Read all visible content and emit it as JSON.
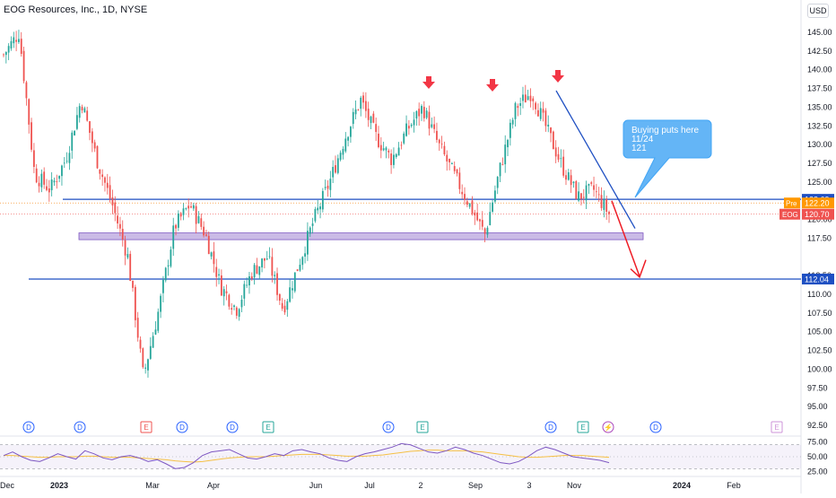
{
  "header": {
    "title": "EOG Resources, Inc., 1D, NYSE"
  },
  "currency_button": "USD",
  "colors": {
    "up": "#26a69a",
    "down": "#ef5350",
    "trend": "#1e4fc2",
    "zone": "#b39ddb",
    "rsi": "#7e57c2",
    "rsi_ma": "#f5c044",
    "callout": "#64b5f6"
  },
  "chart_data": {
    "type": "candlestick",
    "title": "EOG Resources, Inc., 1D, NYSE",
    "symbol": "EOG",
    "y_axis": {
      "ticks": [
        145.0,
        142.5,
        140.0,
        137.5,
        135.0,
        132.5,
        130.0,
        127.5,
        125.0,
        120.0,
        117.5,
        112.5,
        110.0,
        107.5,
        105.0,
        102.5,
        100.0,
        97.5,
        95.0,
        92.5
      ],
      "range": [
        91.5,
        147.5
      ]
    },
    "x_axis": {
      "ticks": [
        "Dec",
        "2023",
        "Mar",
        "Apr",
        "Jun",
        "Jul",
        "2",
        "Sep",
        "3",
        "Nov",
        "2024",
        "Feb"
      ]
    },
    "price_labels": [
      {
        "text": "122.69",
        "value": 122.69,
        "style": "line"
      },
      {
        "text": "122.20",
        "value": 122.2,
        "style": "pre",
        "tag": "Pre"
      },
      {
        "text": "120.70",
        "value": 120.7,
        "style": "last",
        "tag": "EOG"
      },
      {
        "text": "112.04",
        "value": 112.04,
        "style": "line"
      }
    ],
    "series": [
      {
        "name": "EOG",
        "ohlc_key_points": [
          [
            "Dec",
            142
          ],
          [
            "Dec",
            145
          ],
          [
            "Dec",
            126
          ],
          [
            "2023",
            124
          ],
          [
            "2023",
            128
          ],
          [
            "2023",
            136
          ],
          [
            "2023",
            128
          ],
          [
            "Mar",
            122
          ],
          [
            "Mar",
            115
          ],
          [
            "Mar",
            99
          ],
          [
            "Apr",
            108
          ],
          [
            "Apr",
            119
          ],
          [
            "Apr",
            122
          ],
          [
            "Apr",
            118
          ],
          [
            "Jun",
            111
          ],
          [
            "Jun",
            108
          ],
          [
            "Jun",
            113
          ],
          [
            "Jun",
            115
          ],
          [
            "Jul",
            108
          ],
          [
            "Jul",
            114
          ],
          [
            "Jul",
            120
          ],
          [
            "Jul",
            125
          ],
          [
            "2",
            131
          ],
          [
            "2",
            136
          ],
          [
            "2",
            131
          ],
          [
            "2",
            128
          ],
          [
            "Sep",
            132
          ],
          [
            "Sep",
            135
          ],
          [
            "Sep",
            130
          ],
          [
            "3",
            126
          ],
          [
            "3",
            122
          ],
          [
            "3",
            118
          ],
          [
            "3",
            127
          ],
          [
            "Nov",
            135
          ],
          [
            "Nov",
            137
          ],
          [
            "Nov",
            132
          ],
          [
            "Nov",
            127
          ],
          [
            "Nov",
            123
          ],
          [
            "Nov",
            124
          ],
          [
            "Nov",
            120.7
          ]
        ]
      }
    ],
    "levels": [
      {
        "value": 122.69,
        "type": "horizontal-line"
      },
      {
        "value": 112.04,
        "type": "horizontal-line"
      },
      {
        "value_range": [
          117.3,
          118.2
        ],
        "type": "zone"
      }
    ],
    "markers": [
      {
        "type": "down-arrow",
        "near_value": 136
      },
      {
        "type": "down-arrow",
        "near_value": 135.5
      },
      {
        "type": "down-arrow",
        "near_value": 137.5
      }
    ],
    "annotation": {
      "lines": [
        "Buying puts here",
        "11/24",
        "121"
      ]
    },
    "events": [
      {
        "letter": "D",
        "kind": "dividend"
      },
      {
        "letter": "D",
        "kind": "dividend"
      },
      {
        "letter": "E",
        "kind": "earnings"
      },
      {
        "letter": "D",
        "kind": "dividend"
      },
      {
        "letter": "D",
        "kind": "dividend"
      },
      {
        "letter": "E",
        "kind": "earnings"
      },
      {
        "letter": "D",
        "kind": "dividend"
      },
      {
        "letter": "E",
        "kind": "earnings"
      },
      {
        "letter": "D",
        "kind": "dividend"
      },
      {
        "letter": "E",
        "kind": "earnings"
      },
      {
        "letter": "⚡",
        "kind": "split"
      },
      {
        "letter": "D",
        "kind": "dividend"
      },
      {
        "letter": "E",
        "kind": "earnings-future"
      }
    ],
    "rsi": {
      "ticks": [
        75.0,
        50.0,
        25.0
      ],
      "range": [
        20,
        80
      ],
      "values": [
        52,
        58,
        50,
        44,
        42,
        48,
        55,
        50,
        46,
        60,
        55,
        48,
        45,
        50,
        52,
        48,
        42,
        45,
        38,
        30,
        32,
        40,
        52,
        58,
        60,
        62,
        55,
        48,
        46,
        50,
        55,
        52,
        60,
        62,
        58,
        55,
        48,
        44,
        42,
        50,
        55,
        58,
        62,
        66,
        72,
        70,
        64,
        58,
        56,
        60,
        66,
        62,
        56,
        52,
        46,
        40,
        38,
        42,
        50,
        60,
        66,
        62,
        56,
        50,
        48,
        46,
        44,
        40
      ],
      "ma": [
        52,
        52,
        51,
        50,
        49,
        49,
        50,
        50,
        50,
        51,
        51,
        50,
        49,
        49,
        49,
        48,
        47,
        46,
        45,
        43,
        42,
        41,
        42,
        44,
        46,
        48,
        49,
        50,
        50,
        50,
        51,
        52,
        53,
        54,
        54,
        54,
        53,
        52,
        51,
        51,
        51,
        52,
        53,
        55,
        57,
        59,
        60,
        61,
        61,
        60,
        60,
        60,
        59,
        58,
        56,
        54,
        52,
        50,
        49,
        49,
        50,
        51,
        52,
        52,
        52,
        51,
        50,
        49
      ]
    }
  }
}
